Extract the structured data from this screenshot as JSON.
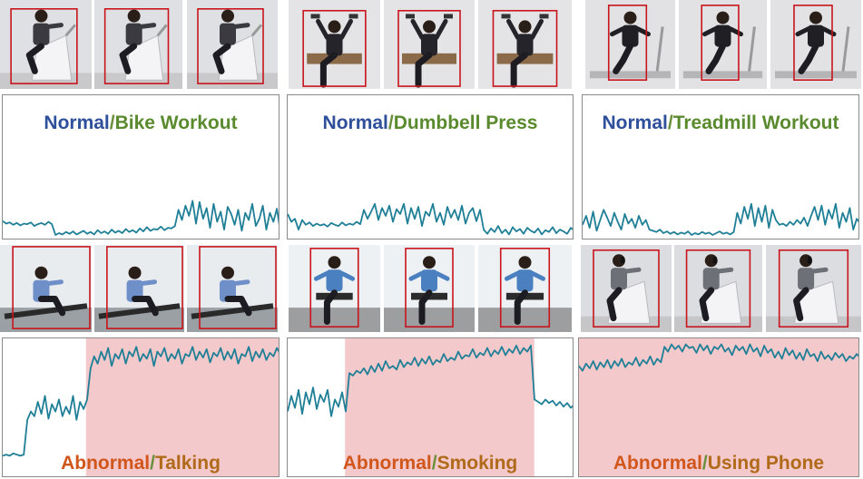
{
  "colors": {
    "signal": "#1f7f96",
    "anomaly_fill": "#f3c9cb",
    "bbox": "#c8141c",
    "normal_text": "#2e4f9a",
    "activity_text": "#5a8a2e",
    "abnormal_text": "#d0561c",
    "anomaly_text": "#b06a1a"
  },
  "sep": "/",
  "normal_panels": [
    {
      "kind": "Normal",
      "activity": "Bike Workout",
      "thumb_scene": "bike",
      "signal": [
        0.26,
        0.22,
        0.24,
        0.2,
        0.23,
        0.19,
        0.22,
        0.21,
        0.24,
        0.18,
        0.21,
        0.23,
        0.2,
        0.25,
        0.21,
        0.03,
        0.06,
        0.04,
        0.08,
        0.05,
        0.09,
        0.04,
        0.07,
        0.1,
        0.05,
        0.08,
        0.04,
        0.11,
        0.06,
        0.09,
        0.05,
        0.12,
        0.07,
        0.1,
        0.06,
        0.13,
        0.08,
        0.11,
        0.07,
        0.14,
        0.09,
        0.16,
        0.1,
        0.13,
        0.12,
        0.17,
        0.11,
        0.15,
        0.14,
        0.18,
        0.45,
        0.28,
        0.52,
        0.35,
        0.6,
        0.22,
        0.58,
        0.3,
        0.48,
        0.15,
        0.55,
        0.25,
        0.42,
        0.12,
        0.5,
        0.38,
        0.2,
        0.45,
        0.1,
        0.4,
        0.28,
        0.55,
        0.18,
        0.3,
        0.52,
        0.12,
        0.4,
        0.25,
        0.47,
        0.09
      ]
    },
    {
      "kind": "Normal",
      "activity": "Dumbbell Press",
      "thumb_scene": "dumbbell",
      "signal": [
        0.38,
        0.25,
        0.3,
        0.12,
        0.28,
        0.2,
        0.24,
        0.18,
        0.22,
        0.19,
        0.21,
        0.17,
        0.23,
        0.2,
        0.18,
        0.24,
        0.19,
        0.22,
        0.2,
        0.25,
        0.21,
        0.45,
        0.3,
        0.42,
        0.55,
        0.28,
        0.48,
        0.35,
        0.52,
        0.25,
        0.46,
        0.38,
        0.55,
        0.22,
        0.48,
        0.3,
        0.5,
        0.18,
        0.42,
        0.35,
        0.55,
        0.25,
        0.4,
        0.2,
        0.5,
        0.32,
        0.45,
        0.28,
        0.52,
        0.22,
        0.4,
        0.48,
        0.26,
        0.45,
        0.12,
        0.05,
        0.14,
        0.08,
        0.18,
        0.06,
        0.12,
        0.04,
        0.16,
        0.09,
        0.13,
        0.05,
        0.15,
        0.1,
        0.07,
        0.14,
        0.04,
        0.11,
        0.08,
        0.16,
        0.06,
        0.12,
        0.09,
        0.05,
        0.15,
        0.1
      ]
    },
    {
      "kind": "Normal",
      "activity": "Treadmill Workout",
      "thumb_scene": "treadmill",
      "signal": [
        0.2,
        0.35,
        0.15,
        0.42,
        0.1,
        0.28,
        0.45,
        0.32,
        0.18,
        0.4,
        0.25,
        0.12,
        0.38,
        0.22,
        0.3,
        0.15,
        0.35,
        0.2,
        0.28,
        0.12,
        0.1,
        0.08,
        0.12,
        0.06,
        0.09,
        0.05,
        0.08,
        0.04,
        0.07,
        0.05,
        0.09,
        0.03,
        0.06,
        0.04,
        0.08,
        0.05,
        0.07,
        0.03,
        0.06,
        0.09,
        0.05,
        0.07,
        0.04,
        0.08,
        0.4,
        0.22,
        0.5,
        0.3,
        0.55,
        0.18,
        0.48,
        0.25,
        0.52,
        0.15,
        0.45,
        0.28,
        0.2,
        0.22,
        0.18,
        0.25,
        0.2,
        0.28,
        0.22,
        0.32,
        0.18,
        0.35,
        0.5,
        0.28,
        0.52,
        0.2,
        0.45,
        0.3,
        0.55,
        0.15,
        0.4,
        0.25,
        0.48,
        0.12,
        0.3,
        0.22
      ]
    }
  ],
  "abnormal_panels": [
    {
      "kind": "Abnormal",
      "anomaly": "Talking",
      "thumb_scene": "rowing",
      "anomaly_range": [
        0.3,
        1.0
      ],
      "signal": [
        0.05,
        0.06,
        0.05,
        0.07,
        0.06,
        0.05,
        0.06,
        0.35,
        0.42,
        0.38,
        0.5,
        0.4,
        0.55,
        0.36,
        0.48,
        0.42,
        0.52,
        0.38,
        0.46,
        0.4,
        0.55,
        0.35,
        0.5,
        0.44,
        0.52,
        0.78,
        0.88,
        0.82,
        0.92,
        0.85,
        0.95,
        0.8,
        0.9,
        0.86,
        0.94,
        0.82,
        0.92,
        0.88,
        0.96,
        0.84,
        0.9,
        0.86,
        0.94,
        0.8,
        0.92,
        0.88,
        0.95,
        0.84,
        0.9,
        0.86,
        0.94,
        0.82,
        0.9,
        0.88,
        0.96,
        0.85,
        0.92,
        0.87,
        0.94,
        0.83,
        0.91,
        0.88,
        0.95,
        0.85,
        0.92,
        0.86,
        0.94,
        0.82,
        0.9,
        0.88,
        0.96,
        0.84,
        0.92,
        0.87,
        0.94,
        0.85,
        0.91,
        0.88,
        0.95,
        0.9
      ]
    },
    {
      "kind": "Abnormal",
      "anomaly": "Smoking",
      "thumb_scene": "chair",
      "anomaly_range": [
        0.2,
        0.86
      ],
      "signal": [
        0.42,
        0.55,
        0.45,
        0.6,
        0.4,
        0.58,
        0.48,
        0.62,
        0.44,
        0.56,
        0.5,
        0.6,
        0.38,
        0.52,
        0.46,
        0.58,
        0.42,
        0.74,
        0.72,
        0.76,
        0.74,
        0.78,
        0.73,
        0.8,
        0.75,
        0.82,
        0.76,
        0.84,
        0.78,
        0.8,
        0.77,
        0.85,
        0.79,
        0.83,
        0.81,
        0.87,
        0.8,
        0.86,
        0.82,
        0.88,
        0.81,
        0.85,
        0.83,
        0.9,
        0.84,
        0.87,
        0.85,
        0.92,
        0.86,
        0.89,
        0.88,
        0.94,
        0.87,
        0.91,
        0.89,
        0.95,
        0.88,
        0.93,
        0.9,
        0.96,
        0.89,
        0.94,
        0.91,
        0.97,
        0.9,
        0.95,
        0.92,
        0.97,
        0.52,
        0.5,
        0.48,
        0.52,
        0.49,
        0.51,
        0.47,
        0.5,
        0.46,
        0.49,
        0.45,
        0.48
      ]
    },
    {
      "kind": "Abnormal",
      "anomaly": "Using Phone",
      "thumb_scene": "phonebike",
      "anomaly_range": [
        0.0,
        1.0
      ],
      "signal": [
        0.8,
        0.76,
        0.82,
        0.78,
        0.84,
        0.77,
        0.83,
        0.79,
        0.85,
        0.78,
        0.84,
        0.8,
        0.86,
        0.79,
        0.83,
        0.81,
        0.87,
        0.8,
        0.85,
        0.82,
        0.88,
        0.81,
        0.86,
        0.83,
        0.96,
        0.92,
        0.98,
        0.94,
        0.97,
        0.92,
        0.98,
        0.95,
        0.96,
        0.91,
        0.98,
        0.93,
        0.97,
        0.9,
        0.96,
        0.94,
        0.98,
        0.92,
        0.95,
        0.89,
        0.97,
        0.93,
        0.96,
        0.9,
        0.98,
        0.92,
        0.95,
        0.88,
        0.97,
        0.91,
        0.94,
        0.87,
        0.92,
        0.86,
        0.95,
        0.89,
        0.93,
        0.86,
        0.91,
        0.85,
        0.94,
        0.88,
        0.9,
        0.84,
        0.92,
        0.86,
        0.89,
        0.85,
        0.91,
        0.87,
        0.9,
        0.84,
        0.88,
        0.86,
        0.9,
        0.87
      ]
    }
  ]
}
